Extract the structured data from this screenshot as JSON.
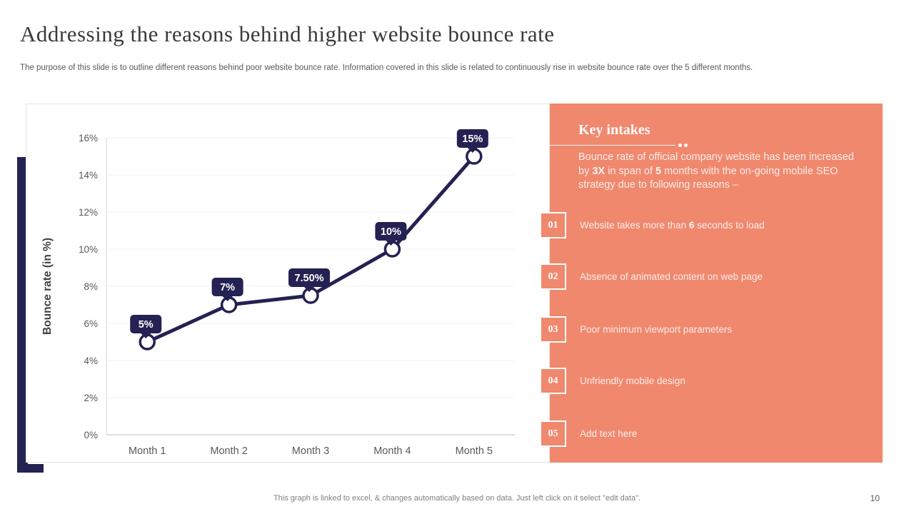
{
  "slide": {
    "title": "Addressing the reasons behind higher website bounce rate",
    "subtitle": "The purpose of this slide is to outline different reasons behind poor website bounce rate. Information covered in this slide is related to continuously rise in website bounce rate over the 5 different months.",
    "footer_note": "This graph is linked to excel, & changes automatically based on data. Just left click on it select \"edit data\".",
    "page_number": "10"
  },
  "colors": {
    "navy": "#242153",
    "coral": "#f0886e",
    "panel_text": "#fbede7",
    "grid": "#f2f2f2",
    "axis_bottom": "#bfbfbf",
    "axis_left": "#d9d9d9",
    "tick_text": "#595959",
    "axis_title_text": "#3f3f3f"
  },
  "chart_data": {
    "type": "line",
    "title": "",
    "xlabel": "",
    "ylabel": "Bounce rate (in %)",
    "categories": [
      "Month 1",
      "Month 2",
      "Month 3",
      "Month 4",
      "Month 5"
    ],
    "values": [
      5,
      7,
      7.5,
      10,
      15
    ],
    "point_labels": [
      "5%",
      "7%",
      "7.50%",
      "10%",
      "15%"
    ],
    "ylim": [
      0,
      16
    ],
    "ytick_step": 2,
    "ytick_labels": [
      "0%",
      "2%",
      "4%",
      "6%",
      "8%",
      "10%",
      "12%",
      "14%",
      "16%"
    ],
    "grid": true,
    "legend": "none"
  },
  "key_intakes": {
    "heading": "Key intakes",
    "intro": {
      "prefix": "Bounce rate of official company website has been increased by ",
      "bold1": "3X",
      "mid": " in span of ",
      "bold2": "5",
      "suffix": " months with the on-going mobile SEO strategy due to following reasons –"
    },
    "items": [
      {
        "number": "01",
        "prefix": "Website takes more than ",
        "bold": "6",
        "suffix": " seconds to load"
      },
      {
        "number": "02",
        "prefix": "Absence of animated content on web page",
        "bold": "",
        "suffix": ""
      },
      {
        "number": "03",
        "prefix": "Poor minimum viewport parameters",
        "bold": "",
        "suffix": ""
      },
      {
        "number": "04",
        "prefix": "Unfriendly mobile design",
        "bold": "",
        "suffix": ""
      },
      {
        "number": "05",
        "prefix": "Add text here",
        "bold": "",
        "suffix": ""
      }
    ]
  }
}
